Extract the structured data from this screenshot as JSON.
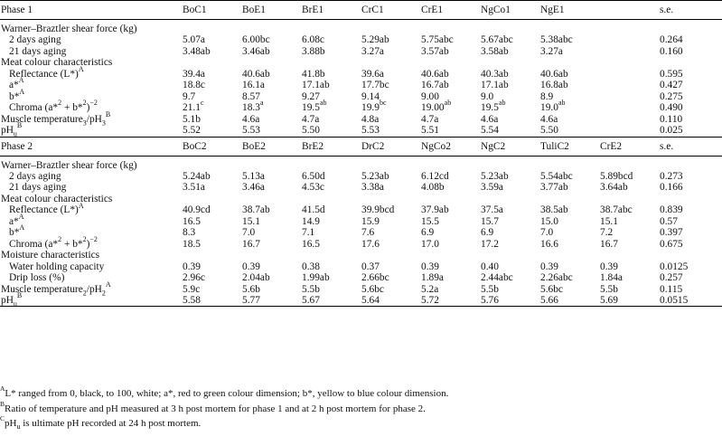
{
  "phase1": {
    "title": "Phase 1",
    "columns": [
      "BoC1",
      "BoE1",
      "BrE1",
      "CrC1",
      "CrE1",
      "NgCo1",
      "NgE1"
    ],
    "se_label": "s.e.",
    "rows": [
      {
        "label": "Warner–Braztler shear force (kg)",
        "section": true
      },
      {
        "label": "2 days aging",
        "indent": true,
        "values": [
          "5.07a",
          "6.00bc",
          "6.08c",
          "5.29ab",
          "5.75abc",
          "5.67abc",
          "5.38abc"
        ],
        "se": "0.264"
      },
      {
        "label": "21 days aging",
        "indent": true,
        "values": [
          "3.48ab",
          "3.46ab",
          "3.88b",
          "3.27a",
          "3.57ab",
          "3.58ab",
          "3.27a"
        ],
        "se": "0.160"
      },
      {
        "label": "Meat colour characteristics",
        "section": true
      },
      {
        "label": "Reflectance (L*)",
        "label_sup": "A",
        "indent": true,
        "values": [
          "39.4a",
          "40.6ab",
          "41.8b",
          "39.6a",
          "40.6ab",
          "40.3ab",
          "40.6ab"
        ],
        "se": "0.595"
      },
      {
        "label": "a*",
        "label_sup": "A",
        "indent": true,
        "values": [
          "18.8c",
          "16.1a",
          "17.1ab",
          "17.7bc",
          "16.7ab",
          "17.1ab",
          "16.8ab"
        ],
        "se": "0.427"
      },
      {
        "label": "b*",
        "label_sup": "A",
        "indent": true,
        "values": [
          "9.7",
          "8.57",
          "9.27",
          "9.14",
          "9.00",
          "9.0",
          "8.9"
        ],
        "se": "0.275"
      },
      {
        "label": "Chroma (a*2 + b*2)−2",
        "indent": true,
        "values": [
          "21.1c",
          "18.3a",
          "19.5ab",
          "19.9bc",
          "19.00ab",
          "19.5ab",
          "19.0ab"
        ],
        "se": "0.490"
      },
      {
        "label": "Muscle temperature3/pH3",
        "label_sup": "B",
        "values": [
          "5.1b",
          "4.6a",
          "4.7a",
          "4.8a",
          "4.7a",
          "4.6a",
          "4.6a"
        ],
        "se": "0.110"
      },
      {
        "label": "pHu",
        "label_sup": "B",
        "values": [
          "5.52",
          "5.53",
          "5.50",
          "5.53",
          "5.51",
          "5.54",
          "5.50"
        ],
        "se": "0.025"
      }
    ]
  },
  "phase2": {
    "title": "Phase 2",
    "columns": [
      "BoC2",
      "BoE2",
      "BrE2",
      "DrC2",
      "NgCo2",
      "NgC2",
      "TuliC2",
      "CrE2"
    ],
    "se_label": "s.e.",
    "rows": [
      {
        "label": "Warner–Braztler shear force (kg)",
        "section": true
      },
      {
        "label": "2 days aging",
        "indent": true,
        "values": [
          "5.24ab",
          "5.13a",
          "6.50d",
          "5.23ab",
          "6.12cd",
          "5.23ab",
          "5.54abc",
          "5.89bcd"
        ],
        "se": "0.273"
      },
      {
        "label": "21 days aging",
        "indent": true,
        "values": [
          "3.51a",
          "3.46a",
          "4.53c",
          "3.38a",
          "4.08b",
          "3.59a",
          "3.77ab",
          "3.64ab"
        ],
        "se": "0.166"
      },
      {
        "label": "Meat colour characteristics",
        "section": true
      },
      {
        "label": "Reflectance (L*)",
        "label_sup": "A",
        "indent": true,
        "values": [
          "40.9cd",
          "38.7ab",
          "41.5d",
          "39.9bcd",
          "37.9ab",
          "37.5a",
          "38.5ab",
          "38.7abc"
        ],
        "se": "0.839"
      },
      {
        "label": "a*",
        "label_sup": "A",
        "indent": true,
        "values": [
          "16.5",
          "15.1",
          "14.9",
          "15.9",
          "15.5",
          "15.7",
          "15.0",
          "15.1"
        ],
        "se": "0.57"
      },
      {
        "label": "b*",
        "label_sup": "A",
        "indent": true,
        "values": [
          "8.3",
          "7.0",
          "7.1",
          "7.6",
          "6.9",
          "6.9",
          "7.0",
          "7.2"
        ],
        "se": "0.397"
      },
      {
        "label": "Chroma (a*2 + b*2)−2",
        "indent": true,
        "values": [
          "18.5",
          "16.7",
          "16.5",
          "17.6",
          "17.0",
          "17.2",
          "16.6",
          "16.7"
        ],
        "se": "0.675"
      },
      {
        "label": "Moisture characteristics",
        "section": true
      },
      {
        "label": "Water holding capacity",
        "indent": true,
        "values": [
          "0.39",
          "0.39",
          "0.38",
          "0.37",
          "0.39",
          "0.40",
          "0.39",
          "0.39"
        ],
        "se": "0.0125"
      },
      {
        "label": "Drip loss (%)",
        "indent": true,
        "values": [
          "2.96c",
          "2.04ab",
          "1.99ab",
          "2.66bc",
          "1.89a",
          "2.44abc",
          "2.26abc",
          "1.84a"
        ],
        "se": "0.257"
      },
      {
        "label": "Muscle temperature2/pH2",
        "label_sup": "A",
        "values": [
          "5.9c",
          "5.6b",
          "5.5b",
          "5.6bc",
          "5.2a",
          "5.5b",
          "5.6bc",
          "5.5b"
        ],
        "se": "0.115"
      },
      {
        "label": "pHu",
        "label_sup": "B",
        "values": [
          "5.58",
          "5.77",
          "5.67",
          "5.64",
          "5.72",
          "5.76",
          "5.66",
          "5.69"
        ],
        "se": "0.0515"
      }
    ]
  },
  "footnotes": [
    {
      "mark": "A",
      "text": "L* ranged from 0, black, to 100, white; a*, red to green colour dimension; b*, yellow to blue colour dimension."
    },
    {
      "mark": "B",
      "text": "Ratio of temperature and pH measured at 3 h post mortem for phase 1 and at 2 h post mortem for phase 2."
    },
    {
      "mark": "C",
      "text": "pHu is ultimate pH recorded at 24 h post mortem."
    }
  ]
}
